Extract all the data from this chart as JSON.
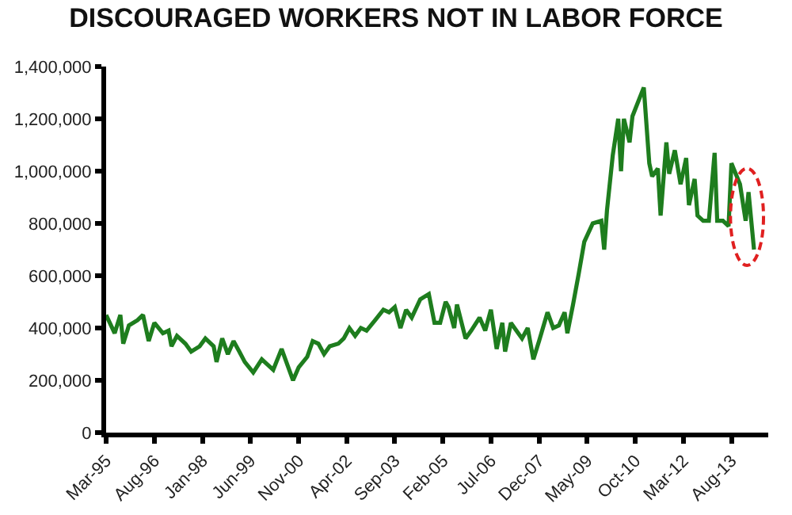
{
  "chart_data": {
    "type": "line",
    "title": "DISCOURAGED WORKERS NOT IN LABOR FORCE",
    "x": [
      "1995-03",
      "1995-06",
      "1995-08",
      "1995-09",
      "1995-11",
      "1996-02",
      "1996-04",
      "1996-06",
      "1996-08",
      "1996-11",
      "1997-01",
      "1997-02",
      "1997-04",
      "1997-07",
      "1997-09",
      "1997-12",
      "1998-02",
      "1998-05",
      "1998-06",
      "1998-08",
      "1998-10",
      "1998-12",
      "1999-02",
      "1999-04",
      "1999-07",
      "1999-10",
      "1999-12",
      "2000-02",
      "2000-05",
      "2000-07",
      "2000-09",
      "2000-11",
      "2001-02",
      "2001-04",
      "2001-06",
      "2001-08",
      "2001-10",
      "2002-01",
      "2002-03",
      "2002-05",
      "2002-07",
      "2002-09",
      "2002-11",
      "2003-02",
      "2003-05",
      "2003-07",
      "2003-09",
      "2003-11",
      "2004-01",
      "2004-03",
      "2004-06",
      "2004-09",
      "2004-11",
      "2005-01",
      "2005-03",
      "2005-04",
      "2005-06",
      "2005-07",
      "2005-10",
      "2005-12",
      "2006-03",
      "2006-05",
      "2006-07",
      "2006-09",
      "2006-11",
      "2006-12",
      "2007-02",
      "2007-04",
      "2007-06",
      "2007-08",
      "2007-10",
      "2007-12",
      "2008-03",
      "2008-05",
      "2008-07",
      "2008-09",
      "2008-10",
      "2008-12",
      "2009-02",
      "2009-04",
      "2009-07",
      "2009-10",
      "2009-11",
      "2009-12",
      "2010-02",
      "2010-04",
      "2010-05",
      "2010-06",
      "2010-08",
      "2010-09",
      "2011-01",
      "2011-03",
      "2011-04",
      "2011-06",
      "2011-07",
      "2011-09",
      "2011-10",
      "2011-12",
      "2012-02",
      "2012-04",
      "2012-05",
      "2012-07",
      "2012-08",
      "2012-10",
      "2012-12",
      "2013-02",
      "2013-03",
      "2013-05",
      "2013-07",
      "2013-08",
      "2013-11",
      "2014-01",
      "2014-02",
      "2014-04"
    ],
    "series": [
      {
        "color": "#1e7d1e",
        "values": [
          450000,
          380000,
          450000,
          340000,
          410000,
          430000,
          450000,
          350000,
          420000,
          380000,
          390000,
          330000,
          370000,
          340000,
          310000,
          330000,
          360000,
          330000,
          270000,
          360000,
          300000,
          350000,
          310000,
          270000,
          230000,
          280000,
          260000,
          240000,
          320000,
          260000,
          200000,
          250000,
          290000,
          350000,
          340000,
          300000,
          330000,
          340000,
          360000,
          400000,
          370000,
          400000,
          390000,
          430000,
          470000,
          460000,
          480000,
          400000,
          470000,
          440000,
          510000,
          530000,
          420000,
          420000,
          500000,
          480000,
          400000,
          490000,
          360000,
          390000,
          440000,
          390000,
          470000,
          320000,
          420000,
          310000,
          420000,
          390000,
          360000,
          400000,
          280000,
          350000,
          460000,
          400000,
          410000,
          460000,
          380000,
          490000,
          610000,
          730000,
          800000,
          810000,
          700000,
          850000,
          1060000,
          1200000,
          1000000,
          1200000,
          1110000,
          1210000,
          1320000,
          1030000,
          980000,
          1010000,
          830000,
          1110000,
          990000,
          1080000,
          950000,
          1050000,
          870000,
          970000,
          830000,
          810000,
          810000,
          1070000,
          810000,
          810000,
          790000,
          1030000,
          950000,
          810000,
          920000,
          700000
        ]
      }
    ],
    "xlim": [
      "1995-03",
      "2014-09"
    ],
    "xticks": [
      {
        "value": "1995-03",
        "label": "Mar-95"
      },
      {
        "value": "1996-08",
        "label": "Aug-96"
      },
      {
        "value": "1998-01",
        "label": "Jan-98"
      },
      {
        "value": "1999-06",
        "label": "Jun-99"
      },
      {
        "value": "2000-11",
        "label": "Nov-00"
      },
      {
        "value": "2002-04",
        "label": "Apr-02"
      },
      {
        "value": "2003-09",
        "label": "Sep-03"
      },
      {
        "value": "2005-02",
        "label": "Feb-05"
      },
      {
        "value": "2006-07",
        "label": "Jul-06"
      },
      {
        "value": "2007-12",
        "label": "Dec-07"
      },
      {
        "value": "2009-05",
        "label": "May-09"
      },
      {
        "value": "2010-10",
        "label": "Oct-10"
      },
      {
        "value": "2012-03",
        "label": "Mar-12"
      },
      {
        "value": "2013-08",
        "label": "Aug-13"
      }
    ],
    "ylim": [
      0,
      1400000
    ],
    "yticks": [
      0,
      {
        "value": 200000,
        "label": "200,000"
      },
      {
        "value": 400000,
        "label": "400,000"
      },
      {
        "value": 600000,
        "label": "600,000"
      },
      {
        "value": 800000,
        "label": "800,000"
      },
      {
        "value": 1000000,
        "label": "1,000,000"
      },
      {
        "value": 1200000,
        "label": "1,200,000"
      },
      {
        "value": 1400000,
        "label": "1,400,000"
      }
    ],
    "marker": "none",
    "line_style": "solid"
  }
}
